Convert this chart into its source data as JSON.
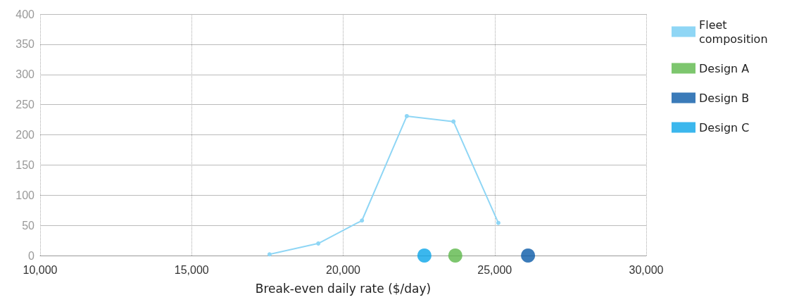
{
  "chart_data": {
    "type": "line",
    "xlabel": "Break-even daily rate ($/day)",
    "xlim": [
      10000,
      30000
    ],
    "xticks": [
      {
        "value": 10000,
        "label": "10,000"
      },
      {
        "value": 15000,
        "label": "15,000"
      },
      {
        "value": 20000,
        "label": "20,000"
      },
      {
        "value": 25000,
        "label": "25,000"
      },
      {
        "value": 30000,
        "label": "30,000"
      }
    ],
    "ylim": [
      0,
      400
    ],
    "yticks": [
      0,
      50,
      100,
      150,
      200,
      250,
      300,
      350,
      400
    ],
    "grid": true,
    "legend": "right",
    "marker": "circle",
    "line_style": "solid",
    "series": [
      {
        "name": "Fleet composition",
        "type": "line",
        "color": "#8fd6f5",
        "x": [
          17570,
          19180,
          20620,
          22100,
          23640,
          25120
        ],
        "values": [
          2,
          20,
          58,
          231,
          222,
          54
        ]
      },
      {
        "name": "Design A",
        "type": "scatter",
        "color": "#5cb84a",
        "x": [
          23700
        ],
        "values": [
          0
        ]
      },
      {
        "name": "Design B",
        "type": "scatter",
        "color": "#0a5aa8",
        "x": [
          26100
        ],
        "values": [
          0
        ]
      },
      {
        "name": "Design C",
        "type": "scatter",
        "color": "#0aa5e8",
        "x": [
          22680
        ],
        "values": [
          0
        ]
      }
    ]
  }
}
